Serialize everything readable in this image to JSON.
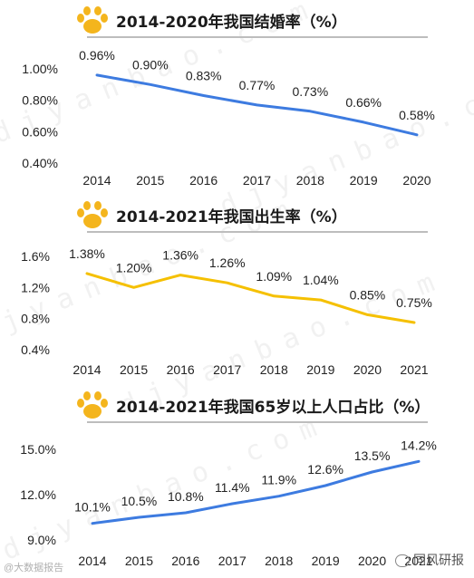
{
  "colors": {
    "blue": "#3d7be0",
    "gold": "#f5c000",
    "paw": "#f4b51d"
  },
  "chart_data": [
    {
      "type": "line",
      "title": "2014-2020年我国结婚率（%）",
      "categories": [
        "2014",
        "2015",
        "2016",
        "2017",
        "2018",
        "2019",
        "2020"
      ],
      "series": [
        {
          "values": [
            0.96,
            0.9,
            0.83,
            0.77,
            0.73,
            0.66,
            0.58
          ],
          "color": "#3d7be0"
        }
      ],
      "data_labels": [
        "0.96%",
        "0.90%",
        "0.83%",
        "0.77%",
        "0.73%",
        "0.66%",
        "0.58%"
      ],
      "yticks": [
        "0.40%",
        "0.60%",
        "0.80%",
        "1.00%"
      ],
      "ylim": [
        0.4,
        1.0
      ],
      "grid": false
    },
    {
      "type": "line",
      "title": "2014-2021年我国出生率（%）",
      "categories": [
        "2014",
        "2015",
        "2016",
        "2017",
        "2018",
        "2019",
        "2020",
        "2021"
      ],
      "series": [
        {
          "values": [
            1.38,
            1.2,
            1.36,
            1.26,
            1.09,
            1.04,
            0.85,
            0.75
          ],
          "color": "#f5c000"
        }
      ],
      "data_labels": [
        "1.38%",
        "1.20%",
        "1.36%",
        "1.26%",
        "1.09%",
        "1.04%",
        "0.85%",
        "0.75%"
      ],
      "yticks": [
        "0.4%",
        "0.8%",
        "1.2%",
        "1.6%"
      ],
      "ylim": [
        0.4,
        1.6
      ],
      "grid": false
    },
    {
      "type": "line",
      "title": "2014-2021年我国65岁以上人口占比（%）",
      "categories": [
        "2014",
        "2015",
        "2016",
        "2017",
        "2018",
        "2019",
        "2020",
        "2021"
      ],
      "series": [
        {
          "values": [
            10.1,
            10.5,
            10.8,
            11.4,
            11.9,
            12.6,
            13.5,
            14.2
          ],
          "color": "#3d7be0"
        }
      ],
      "data_labels": [
        "10.1%",
        "10.5%",
        "10.8%",
        "11.4%",
        "11.9%",
        "12.6%",
        "13.5%",
        "14.2%"
      ],
      "yticks": [
        "9.0%",
        "12.0%",
        "15.0%"
      ],
      "ylim": [
        9.0,
        15.0
      ],
      "grid": false
    }
  ],
  "watermark": "djyanbao.com",
  "footer": {
    "left": "@大数据报告",
    "right": "同风研报"
  }
}
